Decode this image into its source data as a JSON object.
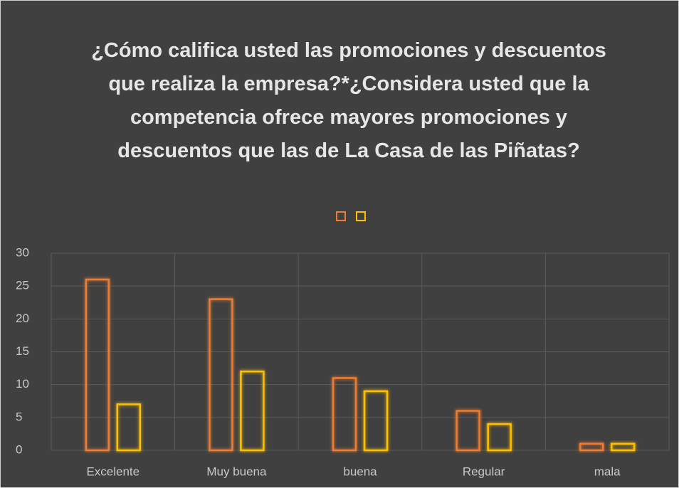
{
  "chart_data": {
    "type": "bar",
    "title": "¿Cómo califica usted las promociones y descuentos que realiza la empresa?*¿Considera usted que la competencia ofrece mayores promociones y descuentos que las de La Casa de las Piñatas?",
    "categories": [
      "Excelente",
      "Muy buena",
      "buena",
      "Regular",
      "mala"
    ],
    "series": [
      {
        "color": "#ed7d31",
        "values": [
          26,
          23,
          11,
          6,
          1
        ]
      },
      {
        "color": "#ffc000",
        "values": [
          7,
          12,
          9,
          4,
          1
        ]
      }
    ],
    "ylim": [
      0,
      30
    ],
    "yticks": [
      0,
      5,
      10,
      15,
      20,
      25,
      30
    ],
    "grid": true,
    "legend": "top"
  }
}
